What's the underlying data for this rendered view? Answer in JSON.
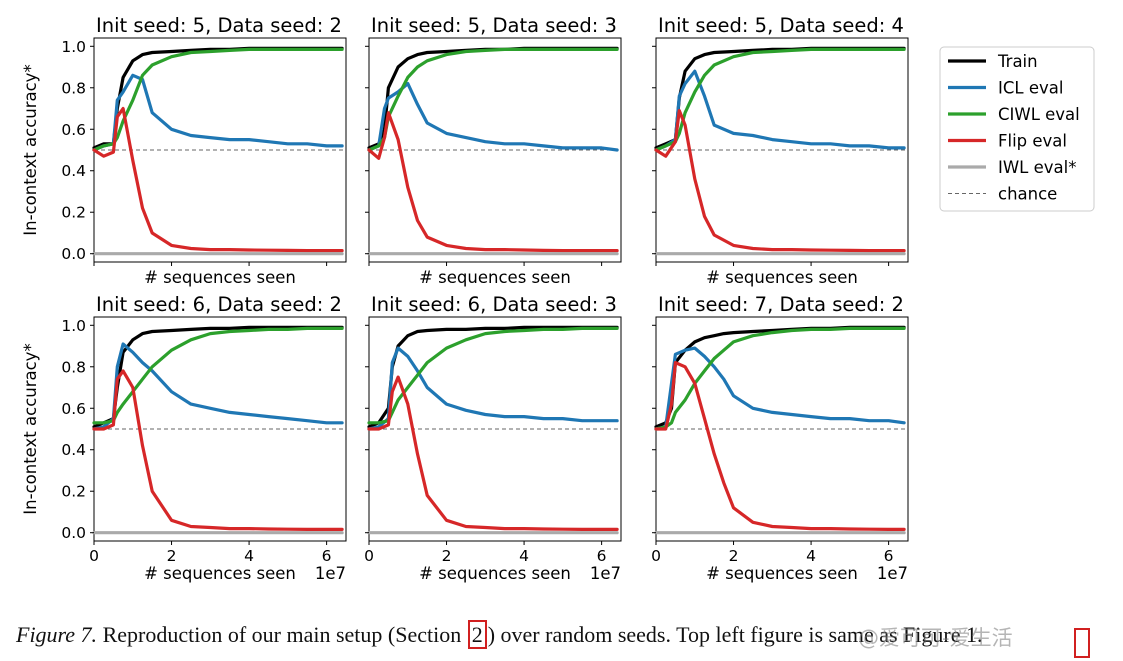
{
  "chart_data": {
    "type": "line",
    "ylabel": "In-context accuracy*",
    "xlabel": "# sequences seen",
    "x_unit_label": "1e7",
    "xlim": [
      0,
      6.5
    ],
    "ylim": [
      -0.04,
      1.04
    ],
    "x_ticks": [
      0,
      2,
      4,
      6
    ],
    "x_tick_labels": [
      "0",
      "2",
      "4",
      "6"
    ],
    "y_ticks": [
      0.0,
      0.2,
      0.4,
      0.6,
      0.8,
      1.0
    ],
    "y_tick_labels": [
      "0.0",
      "0.2",
      "0.4",
      "0.6",
      "0.8",
      "1.0"
    ],
    "chance_level": 0.5,
    "grid": false,
    "legend_position": "right",
    "legend": [
      {
        "name": "Train",
        "color": "#000000",
        "style": "solid"
      },
      {
        "name": "ICL eval",
        "color": "#1f77b4",
        "style": "solid"
      },
      {
        "name": "CIWL eval",
        "color": "#2ca02c",
        "style": "solid"
      },
      {
        "name": "Flip eval",
        "color": "#d62728",
        "style": "solid"
      },
      {
        "name": "IWL eval*",
        "color": "#aaaaaa",
        "style": "solid"
      },
      {
        "name": "chance",
        "color": "#666666",
        "style": "dashed"
      }
    ],
    "panels": [
      {
        "title": "Init seed: 5, Data seed: 2",
        "x": [
          0,
          0.25,
          0.5,
          0.6,
          0.75,
          1.0,
          1.25,
          1.5,
          2.0,
          2.5,
          3.0,
          3.5,
          4.0,
          4.5,
          5.0,
          5.5,
          6.0,
          6.4
        ],
        "series": [
          {
            "name": "Train",
            "values": [
              0.51,
              0.53,
              0.53,
              0.7,
              0.85,
              0.93,
              0.96,
              0.97,
              0.975,
              0.98,
              0.985,
              0.985,
              0.99,
              0.99,
              0.99,
              0.99,
              0.99,
              0.99
            ]
          },
          {
            "name": "ICL eval",
            "values": [
              0.5,
              0.52,
              0.53,
              0.74,
              0.78,
              0.86,
              0.84,
              0.68,
              0.6,
              0.57,
              0.56,
              0.55,
              0.55,
              0.54,
              0.53,
              0.53,
              0.52,
              0.52
            ]
          },
          {
            "name": "CIWL eval",
            "values": [
              0.5,
              0.52,
              0.53,
              0.56,
              0.64,
              0.74,
              0.86,
              0.91,
              0.95,
              0.97,
              0.975,
              0.98,
              0.985,
              0.985,
              0.985,
              0.985,
              0.985,
              0.985
            ]
          },
          {
            "name": "Flip eval",
            "values": [
              0.5,
              0.47,
              0.49,
              0.66,
              0.7,
              0.45,
              0.22,
              0.1,
              0.04,
              0.025,
              0.02,
              0.02,
              0.018,
              0.017,
              0.016,
              0.015,
              0.015,
              0.015
            ]
          },
          {
            "name": "IWL eval*",
            "values": [
              0.0,
              0.0,
              0.0,
              0.0,
              0.0,
              0.0,
              0.0,
              0.0,
              0.0,
              0.0,
              0.0,
              0.0,
              0.0,
              0.0,
              0.0,
              0.0,
              0.0,
              0.0
            ]
          }
        ]
      },
      {
        "title": "Init seed: 5, Data seed: 3",
        "x": [
          0,
          0.25,
          0.4,
          0.5,
          0.75,
          1.0,
          1.25,
          1.5,
          2.0,
          2.5,
          3.0,
          3.5,
          4.0,
          4.5,
          5.0,
          5.5,
          6.0,
          6.4
        ],
        "series": [
          {
            "name": "Train",
            "values": [
              0.51,
              0.53,
              0.6,
              0.8,
              0.9,
              0.94,
              0.96,
              0.97,
              0.975,
              0.98,
              0.985,
              0.985,
              0.99,
              0.99,
              0.99,
              0.99,
              0.99,
              0.99
            ]
          },
          {
            "name": "ICL eval",
            "values": [
              0.5,
              0.52,
              0.7,
              0.75,
              0.78,
              0.82,
              0.72,
              0.63,
              0.58,
              0.56,
              0.54,
              0.53,
              0.53,
              0.52,
              0.51,
              0.51,
              0.51,
              0.5
            ]
          },
          {
            "name": "CIWL eval",
            "values": [
              0.5,
              0.52,
              0.56,
              0.66,
              0.76,
              0.85,
              0.9,
              0.93,
              0.96,
              0.975,
              0.98,
              0.985,
              0.985,
              0.985,
              0.985,
              0.985,
              0.985,
              0.985
            ]
          },
          {
            "name": "Flip eval",
            "values": [
              0.5,
              0.46,
              0.56,
              0.68,
              0.55,
              0.32,
              0.16,
              0.08,
              0.04,
              0.025,
              0.02,
              0.02,
              0.018,
              0.016,
              0.015,
              0.015,
              0.015,
              0.015
            ]
          },
          {
            "name": "IWL eval*",
            "values": [
              0.0,
              0.0,
              0.0,
              0.0,
              0.0,
              0.0,
              0.0,
              0.0,
              0.0,
              0.0,
              0.0,
              0.0,
              0.0,
              0.0,
              0.0,
              0.0,
              0.0,
              0.0
            ]
          }
        ]
      },
      {
        "title": "Init seed: 5, Data seed: 4",
        "x": [
          0,
          0.25,
          0.5,
          0.6,
          0.75,
          1.0,
          1.25,
          1.5,
          2.0,
          2.5,
          3.0,
          3.5,
          4.0,
          4.5,
          5.0,
          5.5,
          6.0,
          6.4
        ],
        "series": [
          {
            "name": "Train",
            "values": [
              0.51,
              0.53,
              0.55,
              0.75,
              0.88,
              0.94,
              0.96,
              0.97,
              0.975,
              0.98,
              0.985,
              0.985,
              0.99,
              0.99,
              0.99,
              0.99,
              0.99,
              0.99
            ]
          },
          {
            "name": "ICL eval",
            "values": [
              0.5,
              0.52,
              0.55,
              0.76,
              0.82,
              0.88,
              0.76,
              0.62,
              0.58,
              0.57,
              0.55,
              0.54,
              0.53,
              0.53,
              0.52,
              0.52,
              0.51,
              0.51
            ]
          },
          {
            "name": "CIWL eval",
            "values": [
              0.5,
              0.52,
              0.54,
              0.58,
              0.68,
              0.78,
              0.86,
              0.91,
              0.95,
              0.97,
              0.975,
              0.98,
              0.985,
              0.985,
              0.985,
              0.985,
              0.985,
              0.985
            ]
          },
          {
            "name": "Flip eval",
            "values": [
              0.5,
              0.47,
              0.54,
              0.69,
              0.62,
              0.36,
              0.18,
              0.09,
              0.04,
              0.025,
              0.02,
              0.02,
              0.018,
              0.017,
              0.016,
              0.015,
              0.015,
              0.015
            ]
          },
          {
            "name": "IWL eval*",
            "values": [
              0.0,
              0.0,
              0.0,
              0.0,
              0.0,
              0.0,
              0.0,
              0.0,
              0.0,
              0.0,
              0.0,
              0.0,
              0.0,
              0.0,
              0.0,
              0.0,
              0.0,
              0.0
            ]
          }
        ]
      },
      {
        "title": "Init seed: 6, Data seed: 2",
        "x": [
          0,
          0.25,
          0.5,
          0.6,
          0.75,
          1.0,
          1.25,
          1.5,
          2.0,
          2.5,
          3.0,
          3.5,
          4.0,
          4.5,
          5.0,
          5.5,
          6.0,
          6.4
        ],
        "series": [
          {
            "name": "Train",
            "values": [
              0.51,
              0.53,
              0.55,
              0.7,
              0.87,
              0.93,
              0.96,
              0.97,
              0.975,
              0.98,
              0.985,
              0.985,
              0.99,
              0.99,
              0.99,
              0.99,
              0.99,
              0.99
            ]
          },
          {
            "name": "ICL eval",
            "values": [
              0.5,
              0.51,
              0.55,
              0.8,
              0.91,
              0.87,
              0.82,
              0.78,
              0.68,
              0.62,
              0.6,
              0.58,
              0.57,
              0.56,
              0.55,
              0.54,
              0.53,
              0.53
            ]
          },
          {
            "name": "CIWL eval",
            "values": [
              0.53,
              0.53,
              0.54,
              0.58,
              0.62,
              0.68,
              0.74,
              0.8,
              0.88,
              0.93,
              0.96,
              0.97,
              0.975,
              0.98,
              0.98,
              0.985,
              0.985,
              0.985
            ]
          },
          {
            "name": "Flip eval",
            "values": [
              0.5,
              0.5,
              0.52,
              0.74,
              0.78,
              0.7,
              0.42,
              0.2,
              0.06,
              0.03,
              0.025,
              0.02,
              0.02,
              0.018,
              0.017,
              0.016,
              0.016,
              0.016
            ]
          },
          {
            "name": "IWL eval*",
            "values": [
              0.0,
              0.0,
              0.0,
              0.0,
              0.0,
              0.0,
              0.0,
              0.0,
              0.0,
              0.0,
              0.0,
              0.0,
              0.0,
              0.0,
              0.0,
              0.0,
              0.0,
              0.0
            ]
          }
        ]
      },
      {
        "title": "Init seed: 6, Data seed: 3",
        "x": [
          0,
          0.25,
          0.5,
          0.6,
          0.75,
          1.0,
          1.25,
          1.5,
          2.0,
          2.5,
          3.0,
          3.5,
          4.0,
          4.5,
          5.0,
          5.5,
          6.0,
          6.4
        ],
        "series": [
          {
            "name": "Train",
            "values": [
              0.51,
              0.53,
              0.6,
              0.8,
              0.9,
              0.95,
              0.97,
              0.975,
              0.98,
              0.98,
              0.985,
              0.985,
              0.99,
              0.99,
              0.99,
              0.99,
              0.99,
              0.99
            ]
          },
          {
            "name": "ICL eval",
            "values": [
              0.5,
              0.51,
              0.55,
              0.82,
              0.89,
              0.85,
              0.78,
              0.7,
              0.62,
              0.59,
              0.57,
              0.56,
              0.56,
              0.55,
              0.55,
              0.54,
              0.54,
              0.54
            ]
          },
          {
            "name": "CIWL eval",
            "values": [
              0.53,
              0.53,
              0.54,
              0.58,
              0.64,
              0.7,
              0.76,
              0.82,
              0.89,
              0.93,
              0.96,
              0.97,
              0.975,
              0.98,
              0.98,
              0.985,
              0.985,
              0.985
            ]
          },
          {
            "name": "Flip eval",
            "values": [
              0.5,
              0.5,
              0.52,
              0.68,
              0.75,
              0.62,
              0.38,
              0.18,
              0.06,
              0.03,
              0.025,
              0.02,
              0.02,
              0.018,
              0.017,
              0.016,
              0.016,
              0.016
            ]
          },
          {
            "name": "IWL eval*",
            "values": [
              0.0,
              0.0,
              0.0,
              0.0,
              0.0,
              0.0,
              0.0,
              0.0,
              0.0,
              0.0,
              0.0,
              0.0,
              0.0,
              0.0,
              0.0,
              0.0,
              0.0,
              0.0
            ]
          }
        ]
      },
      {
        "title": "Init seed: 7, Data seed: 2",
        "x": [
          0,
          0.25,
          0.4,
          0.5,
          0.75,
          1.0,
          1.25,
          1.5,
          1.75,
          2.0,
          2.5,
          3.0,
          3.5,
          4.0,
          4.5,
          5.0,
          5.5,
          6.0,
          6.4
        ],
        "series": [
          {
            "name": "Train",
            "values": [
              0.51,
              0.53,
              0.6,
              0.82,
              0.88,
              0.92,
              0.94,
              0.95,
              0.96,
              0.965,
              0.97,
              0.975,
              0.98,
              0.985,
              0.985,
              0.99,
              0.99,
              0.99,
              0.99
            ]
          },
          {
            "name": "ICL eval",
            "values": [
              0.5,
              0.51,
              0.72,
              0.86,
              0.88,
              0.89,
              0.85,
              0.8,
              0.74,
              0.66,
              0.6,
              0.58,
              0.57,
              0.56,
              0.55,
              0.55,
              0.54,
              0.54,
              0.53
            ]
          },
          {
            "name": "CIWL eval",
            "values": [
              0.5,
              0.51,
              0.53,
              0.58,
              0.64,
              0.72,
              0.78,
              0.84,
              0.88,
              0.92,
              0.95,
              0.965,
              0.975,
              0.98,
              0.98,
              0.985,
              0.985,
              0.985,
              0.985
            ]
          },
          {
            "name": "Flip eval",
            "values": [
              0.5,
              0.5,
              0.62,
              0.82,
              0.8,
              0.72,
              0.55,
              0.38,
              0.24,
              0.12,
              0.05,
              0.03,
              0.025,
              0.02,
              0.02,
              0.018,
              0.017,
              0.016,
              0.016
            ]
          },
          {
            "name": "IWL eval*",
            "values": [
              0.0,
              0.0,
              0.0,
              0.0,
              0.0,
              0.0,
              0.0,
              0.0,
              0.0,
              0.0,
              0.0,
              0.0,
              0.0,
              0.0,
              0.0,
              0.0,
              0.0,
              0.0,
              0.0
            ]
          }
        ]
      }
    ]
  },
  "caption": {
    "label": "Figure 7.",
    "text_1": " Reproduction of our main setup (Section ",
    "ref": "2",
    "text_2": ") over random seeds. Top left figure is same as Figure 1."
  },
  "watermark": "@爱可可-爱生活"
}
